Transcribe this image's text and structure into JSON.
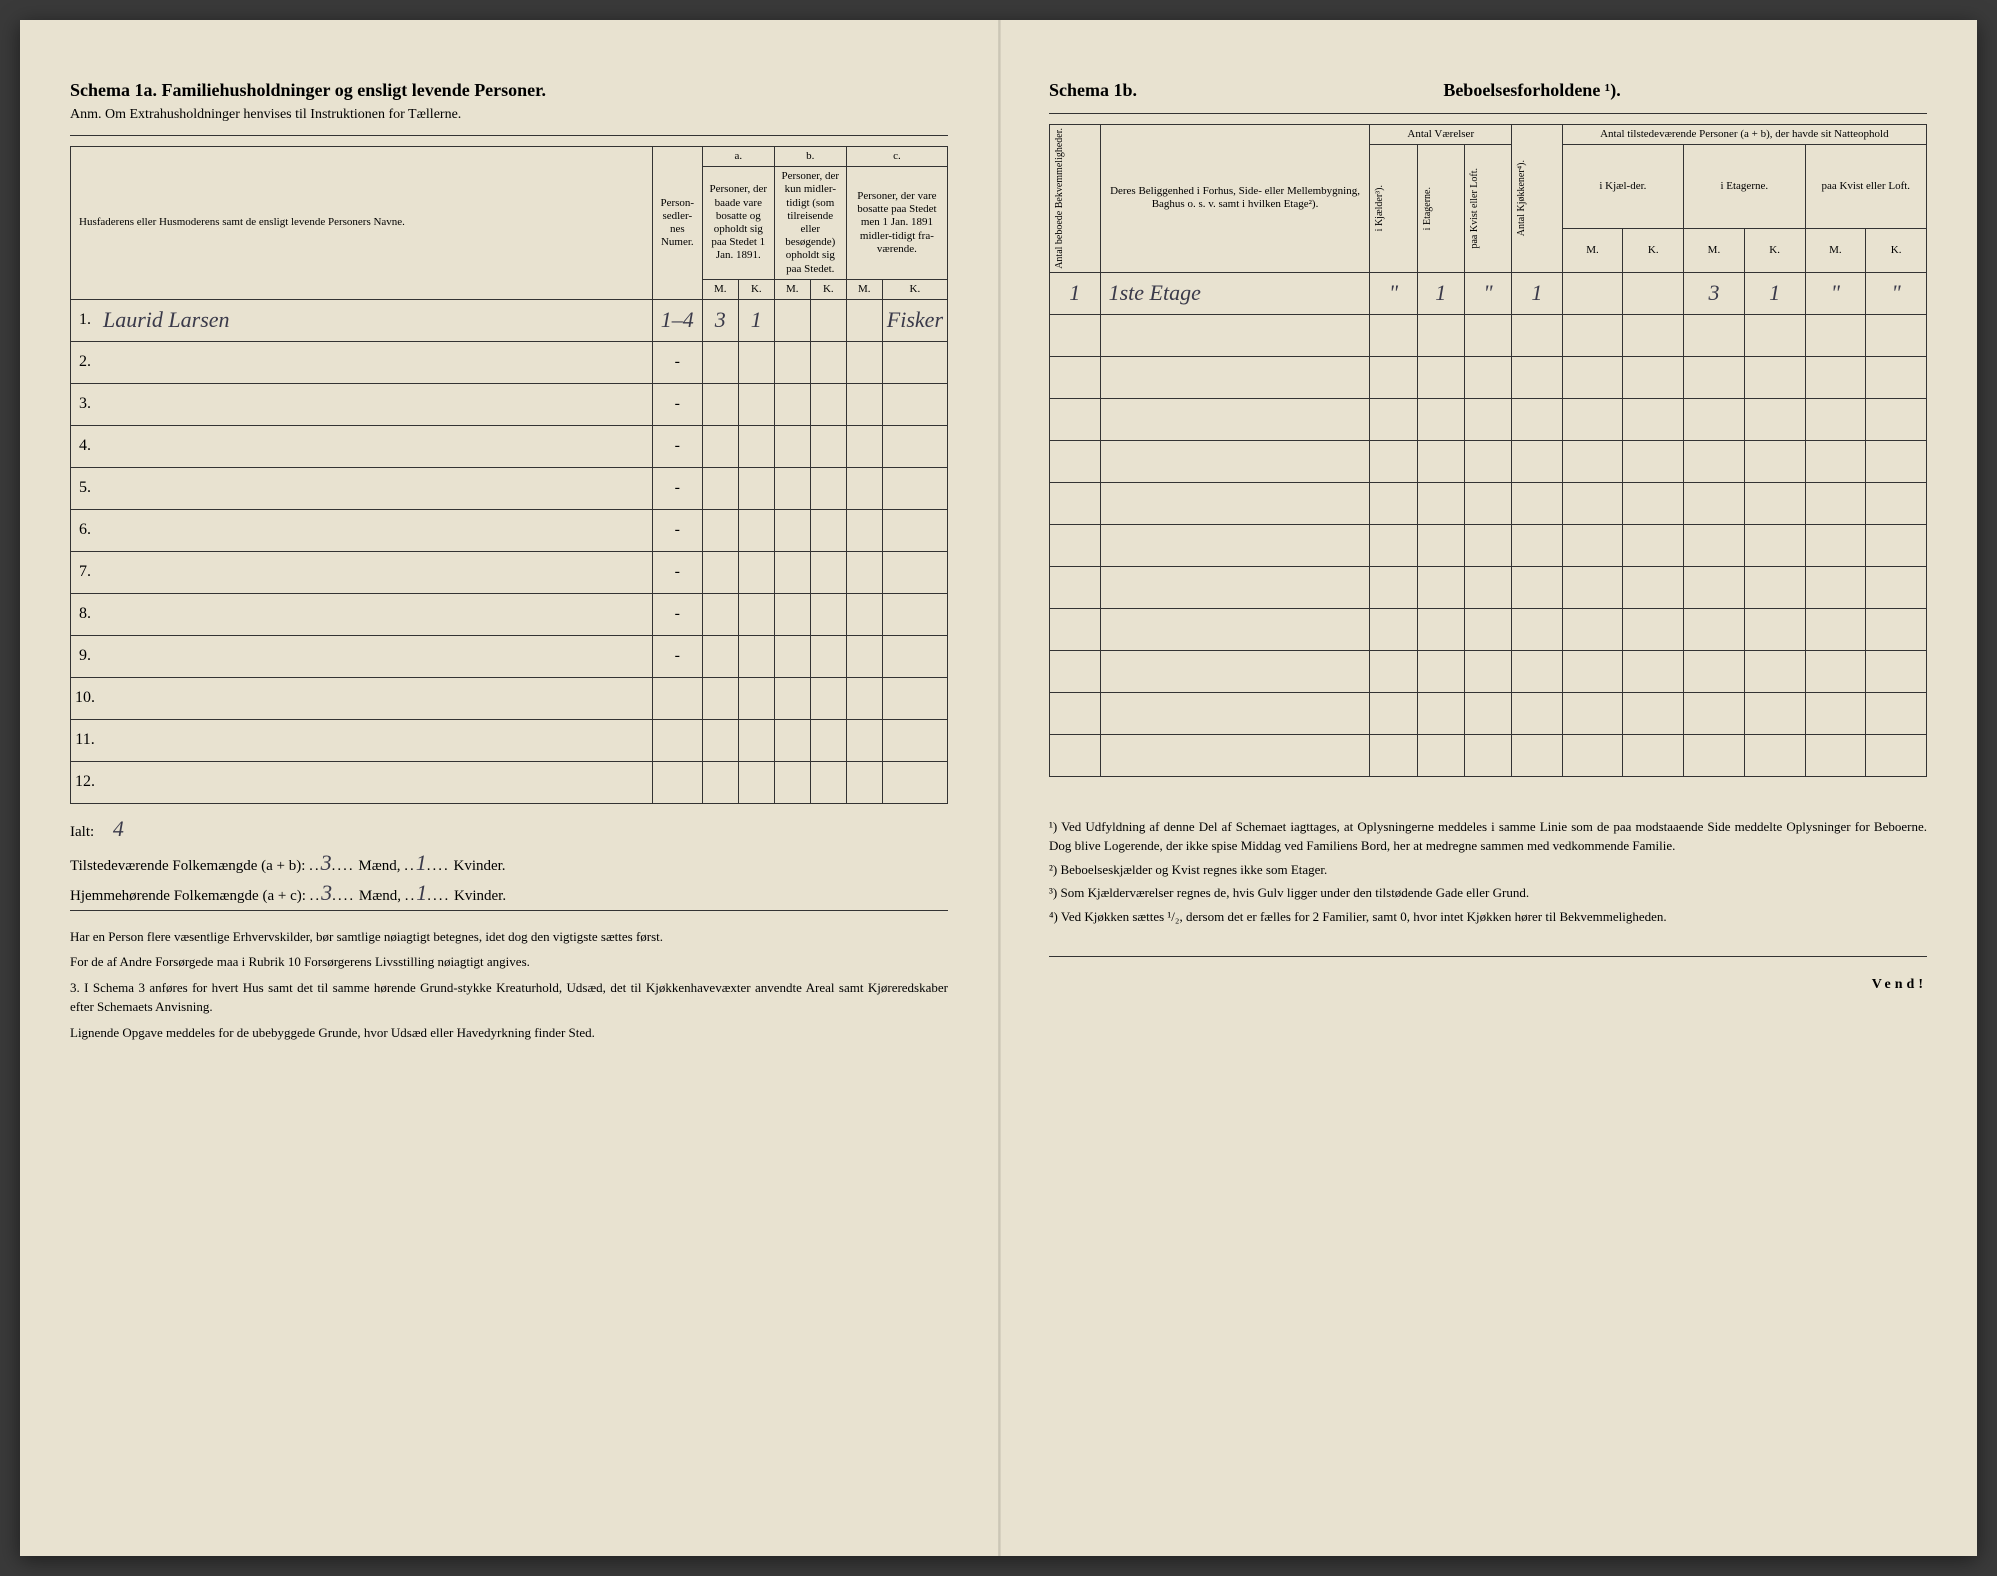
{
  "background_color": "#e8e2d0",
  "text_color": "#2a2a2a",
  "handwriting_color": "#3a3a4a",
  "left": {
    "title": "Schema 1a. Familiehusholdninger og ensligt levende Personer.",
    "subtitle": "Anm. Om Extrahusholdninger henvises til Instruktionen for Tællerne.",
    "headers": {
      "name": "Husfaderens eller Husmoderens samt de ensligt levende Personers Navne.",
      "numer": "Person-sedler-nes Numer.",
      "a_label": "a.",
      "a_text": "Personer, der baade vare bosatte og opholdt sig paa Stedet 1 Jan. 1891.",
      "b_label": "b.",
      "b_text": "Personer, der kun midler-tidigt (som tilreisende eller besøgende) opholdt sig paa Stedet.",
      "c_label": "c.",
      "c_text": "Personer, der vare bosatte paa Stedet men 1 Jan. 1891 midler-tidigt fra-værende.",
      "m": "M.",
      "k": "K."
    },
    "rows": [
      {
        "n": "1.",
        "name": "Laurid Larsen",
        "numer": "1–4",
        "a_m": "3",
        "a_k": "1",
        "b_m": "",
        "b_k": "",
        "c_m": "",
        "c_k": "Fisker"
      },
      {
        "n": "2.",
        "name": "",
        "numer": "-",
        "a_m": "",
        "a_k": "",
        "b_m": "",
        "b_k": "",
        "c_m": "",
        "c_k": ""
      },
      {
        "n": "3.",
        "name": "",
        "numer": "-",
        "a_m": "",
        "a_k": "",
        "b_m": "",
        "b_k": "",
        "c_m": "",
        "c_k": ""
      },
      {
        "n": "4.",
        "name": "",
        "numer": "-",
        "a_m": "",
        "a_k": "",
        "b_m": "",
        "b_k": "",
        "c_m": "",
        "c_k": ""
      },
      {
        "n": "5.",
        "name": "",
        "numer": "-",
        "a_m": "",
        "a_k": "",
        "b_m": "",
        "b_k": "",
        "c_m": "",
        "c_k": ""
      },
      {
        "n": "6.",
        "name": "",
        "numer": "-",
        "a_m": "",
        "a_k": "",
        "b_m": "",
        "b_k": "",
        "c_m": "",
        "c_k": ""
      },
      {
        "n": "7.",
        "name": "",
        "numer": "-",
        "a_m": "",
        "a_k": "",
        "b_m": "",
        "b_k": "",
        "c_m": "",
        "c_k": ""
      },
      {
        "n": "8.",
        "name": "",
        "numer": "-",
        "a_m": "",
        "a_k": "",
        "b_m": "",
        "b_k": "",
        "c_m": "",
        "c_k": ""
      },
      {
        "n": "9.",
        "name": "",
        "numer": "-",
        "a_m": "",
        "a_k": "",
        "b_m": "",
        "b_k": "",
        "c_m": "",
        "c_k": ""
      },
      {
        "n": "10.",
        "name": "",
        "numer": "",
        "a_m": "",
        "a_k": "",
        "b_m": "",
        "b_k": "",
        "c_m": "",
        "c_k": ""
      },
      {
        "n": "11.",
        "name": "",
        "numer": "",
        "a_m": "",
        "a_k": "",
        "b_m": "",
        "b_k": "",
        "c_m": "",
        "c_k": ""
      },
      {
        "n": "12.",
        "name": "",
        "numer": "",
        "a_m": "",
        "a_k": "",
        "b_m": "",
        "b_k": "",
        "c_m": "",
        "c_k": ""
      }
    ],
    "ialt_label": "Ialt:",
    "ialt_value": "4",
    "summary1_pre": "Tilstedeværende Folkemængde (a + b): ",
    "summary1_m": "3",
    "summary1_mid": " Mænd, ",
    "summary1_k": "1",
    "summary1_post": " Kvinder.",
    "summary2_pre": "Hjemmehørende Folkemængde (a + c): ",
    "summary2_m": "3",
    "summary2_mid": " Mænd, ",
    "summary2_k": "1",
    "summary2_post": " Kvinder.",
    "bottom_p1": "Har en Person flere væsentlige Erhvervskilder, bør samtlige nøiagtigt betegnes, idet dog den vigtigste sættes først.",
    "bottom_p2": "For de af Andre Forsørgede maa i Rubrik 10 Forsørgerens Livsstilling nøiagtigt angives.",
    "bottom_p3": "3. I Schema 3 anføres for hvert Hus samt det til samme hørende Grund-stykke Kreaturhold, Udsæd, det til Kjøkkenhavevæxter anvendte Areal samt Kjøreredskaber efter Schemaets Anvisning.",
    "bottom_p4": "Lignende Opgave meddeles for de ubebyggede Grunde, hvor Udsæd eller Havedyrkning finder Sted."
  },
  "right": {
    "title_left": "Schema 1b.",
    "title_right": "Beboelsesforholdene ¹).",
    "headers": {
      "antal_bekv": "Antal beboede Bekvemmeligheder.",
      "beliggenhed": "Deres Beliggenhed i Forhus, Side- eller Mellembygning, Baghus o. s. v. samt i hvilken Etage²).",
      "antal_vaer": "Antal Værelser",
      "i_kjaelder": "i Kjælder³).",
      "i_etagerne": "i Etagerne.",
      "paa_kvist": "paa Kvist eller Loft.",
      "antal_kjok": "Antal Kjøkkener⁴).",
      "antal_pers": "Antal tilstedeværende Personer (a + b), der havde sit Natteophold",
      "i_kjael": "i Kjæl-der.",
      "i_etag": "i Etagerne.",
      "paa_kvist2": "paa Kvist eller Loft.",
      "m": "M.",
      "k": "K."
    },
    "rows": [
      {
        "bekv": "1",
        "belig": "1ste Etage",
        "kj": "\"",
        "et": "1",
        "kv": "\"",
        "kjok": "1",
        "km": "",
        "kk": "",
        "em": "3",
        "ek": "1",
        "lm": "\"",
        "lk": "\""
      },
      {
        "bekv": "",
        "belig": "",
        "kj": "",
        "et": "",
        "kv": "",
        "kjok": "",
        "km": "",
        "kk": "",
        "em": "",
        "ek": "",
        "lm": "",
        "lk": ""
      },
      {
        "bekv": "",
        "belig": "",
        "kj": "",
        "et": "",
        "kv": "",
        "kjok": "",
        "km": "",
        "kk": "",
        "em": "",
        "ek": "",
        "lm": "",
        "lk": ""
      },
      {
        "bekv": "",
        "belig": "",
        "kj": "",
        "et": "",
        "kv": "",
        "kjok": "",
        "km": "",
        "kk": "",
        "em": "",
        "ek": "",
        "lm": "",
        "lk": ""
      },
      {
        "bekv": "",
        "belig": "",
        "kj": "",
        "et": "",
        "kv": "",
        "kjok": "",
        "km": "",
        "kk": "",
        "em": "",
        "ek": "",
        "lm": "",
        "lk": ""
      },
      {
        "bekv": "",
        "belig": "",
        "kj": "",
        "et": "",
        "kv": "",
        "kjok": "",
        "km": "",
        "kk": "",
        "em": "",
        "ek": "",
        "lm": "",
        "lk": ""
      },
      {
        "bekv": "",
        "belig": "",
        "kj": "",
        "et": "",
        "kv": "",
        "kjok": "",
        "km": "",
        "kk": "",
        "em": "",
        "ek": "",
        "lm": "",
        "lk": ""
      },
      {
        "bekv": "",
        "belig": "",
        "kj": "",
        "et": "",
        "kv": "",
        "kjok": "",
        "km": "",
        "kk": "",
        "em": "",
        "ek": "",
        "lm": "",
        "lk": ""
      },
      {
        "bekv": "",
        "belig": "",
        "kj": "",
        "et": "",
        "kv": "",
        "kjok": "",
        "km": "",
        "kk": "",
        "em": "",
        "ek": "",
        "lm": "",
        "lk": ""
      },
      {
        "bekv": "",
        "belig": "",
        "kj": "",
        "et": "",
        "kv": "",
        "kjok": "",
        "km": "",
        "kk": "",
        "em": "",
        "ek": "",
        "lm": "",
        "lk": ""
      },
      {
        "bekv": "",
        "belig": "",
        "kj": "",
        "et": "",
        "kv": "",
        "kjok": "",
        "km": "",
        "kk": "",
        "em": "",
        "ek": "",
        "lm": "",
        "lk": ""
      },
      {
        "bekv": "",
        "belig": "",
        "kj": "",
        "et": "",
        "kv": "",
        "kjok": "",
        "km": "",
        "kk": "",
        "em": "",
        "ek": "",
        "lm": "",
        "lk": ""
      }
    ],
    "fn1": "¹) Ved Udfyldning af denne Del af Schemaet iagttages, at Oplysningerne meddeles i samme Linie som de paa modstaaende Side meddelte Oplysninger for Beboerne. Dog blive Logerende, der ikke spise Middag ved Familiens Bord, her at medregne sammen med vedkommende Familie.",
    "fn2": "²) Beboelseskjælder og Kvist regnes ikke som Etager.",
    "fn3": "³) Som Kjælderværelser regnes de, hvis Gulv ligger under den tilstødende Gade eller Grund.",
    "fn4": "⁴) Ved Kjøkken sættes ¹/₂, dersom det er fælles for 2 Familier, samt 0, hvor intet Kjøkken hører til Bekvemmeligheden.",
    "vend": "Vend!"
  }
}
